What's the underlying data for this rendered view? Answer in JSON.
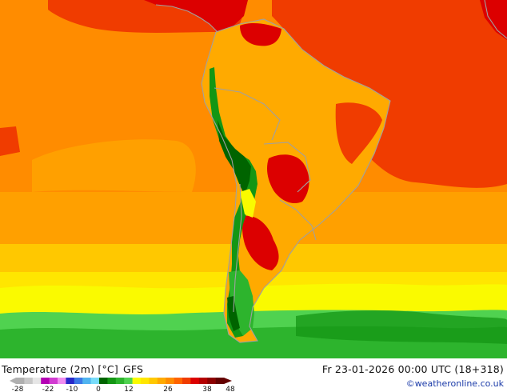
{
  "title": "Temperature (2m) [°C]",
  "model": "GFS",
  "datetime": "Fr 23-01-2026 00:00 UTC (18+318)",
  "credit": "©weatheronline.co.uk",
  "legend": {
    "ticks": [
      "-28",
      "-22",
      "-10",
      "0",
      "12",
      "26",
      "38",
      "48"
    ],
    "colors": [
      "#b0b0b0",
      "#c8c8c8",
      "#e6e6e6",
      "#b400b4",
      "#d23cd2",
      "#f08cf0",
      "#2828c8",
      "#3c78e6",
      "#50b4f0",
      "#78dcfa",
      "#006400",
      "#149614",
      "#2db42d",
      "#50d250",
      "#fafa00",
      "#ffe600",
      "#ffc800",
      "#ffaa00",
      "#ff8c00",
      "#ff6400",
      "#f03c00",
      "#dc0000",
      "#b40000",
      "#8c0000",
      "#640000"
    ]
  },
  "colors": {
    "ocean_far": "#ff8c00",
    "ocean_warm": "#ffaa00",
    "hot": "#f03c00",
    "very_hot": "#dc0000",
    "land": "#ffaa00",
    "andes_green": "#149614",
    "south_green": "#2db42d",
    "yellow_band": "#fafa00",
    "coast": "#a0a0a0"
  }
}
